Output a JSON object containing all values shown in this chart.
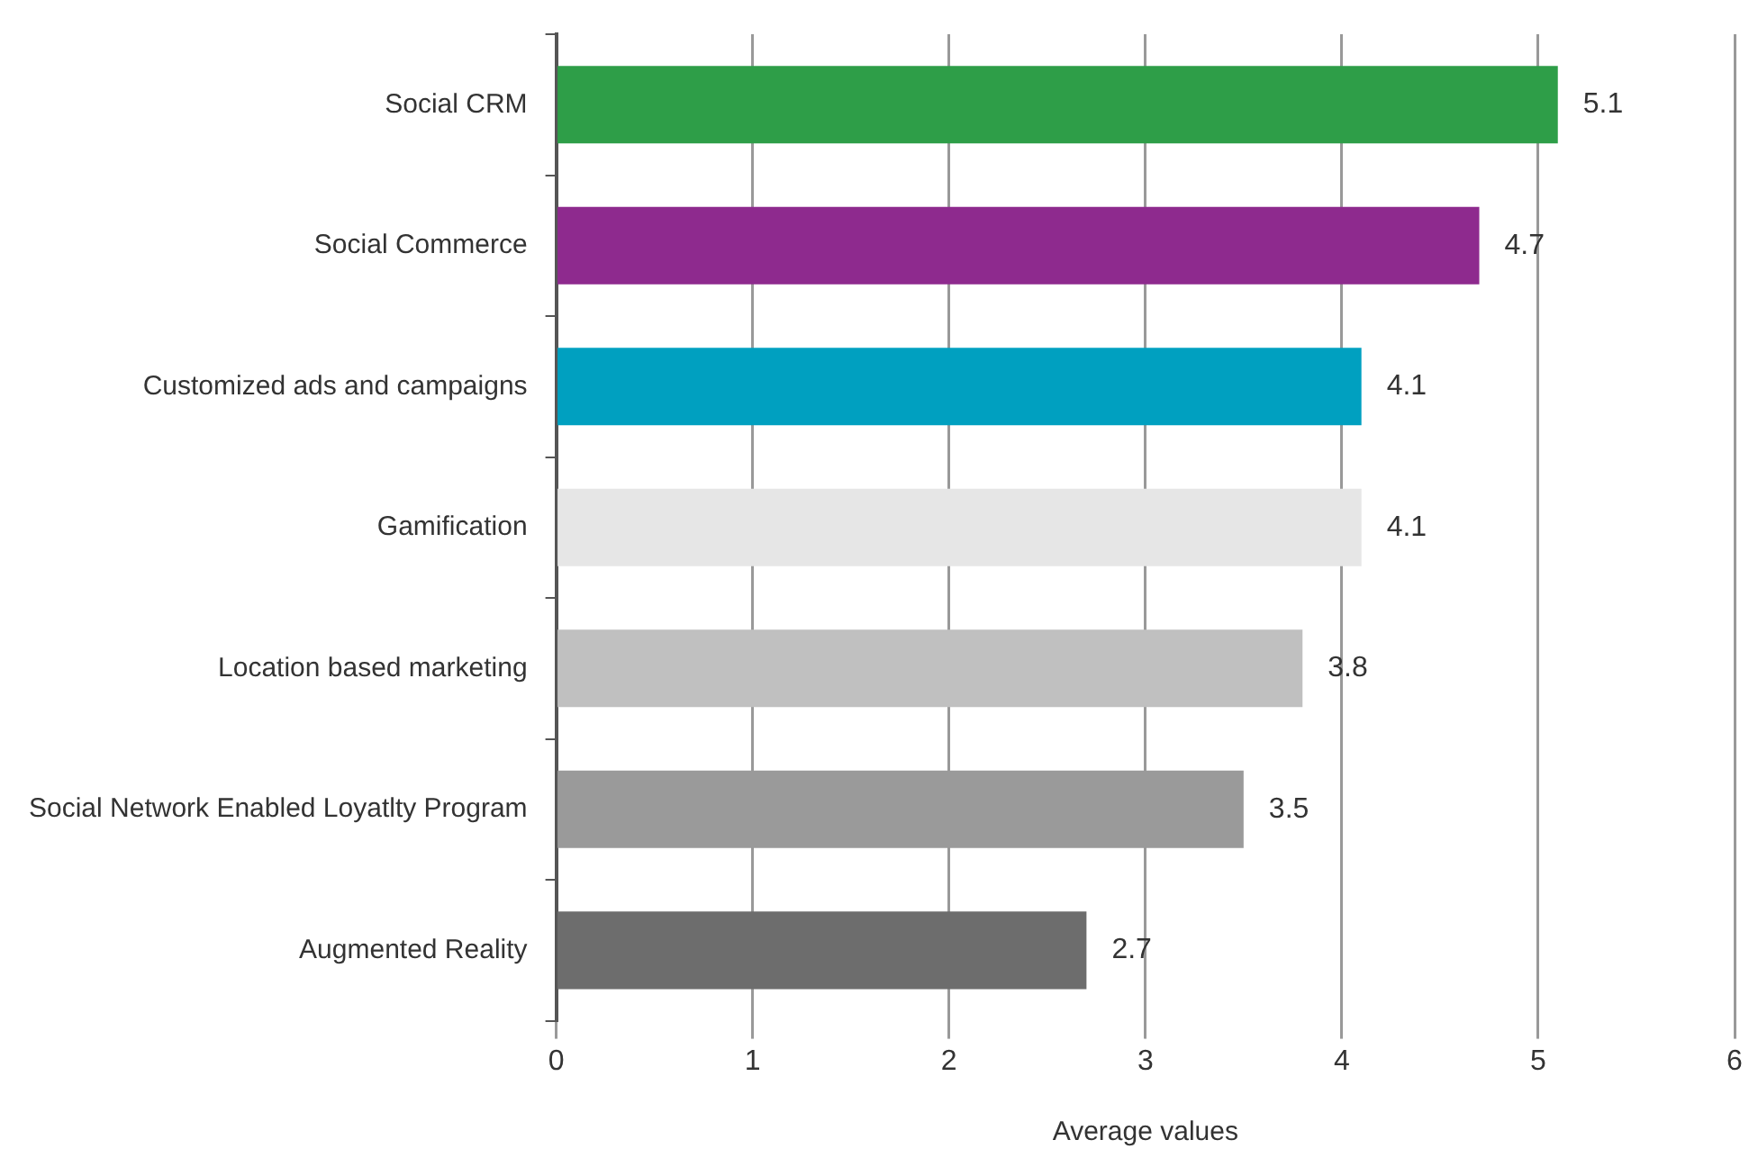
{
  "chart_data": {
    "type": "bar",
    "orientation": "horizontal",
    "xlabel": "Average values",
    "categories": [
      "Social CRM",
      "Social Commerce",
      "Customized ads and campaigns",
      "Gamification",
      "Location based marketing",
      "Social Network Enabled Loyatlty Program",
      "Augmented Reality"
    ],
    "values": [
      5.1,
      4.7,
      4.1,
      4.1,
      3.8,
      3.5,
      2.7
    ],
    "colors": [
      "#2e9e48",
      "#8e2a8e",
      "#00a0c0",
      "#e6e6e6",
      "#c0c0c0",
      "#9a9a9a",
      "#6d6d6d"
    ],
    "xlim": [
      0,
      6
    ],
    "xticks": [
      0,
      1,
      2,
      3,
      4,
      5,
      6
    ],
    "grid": "x",
    "data_labels": true,
    "legend": false
  }
}
